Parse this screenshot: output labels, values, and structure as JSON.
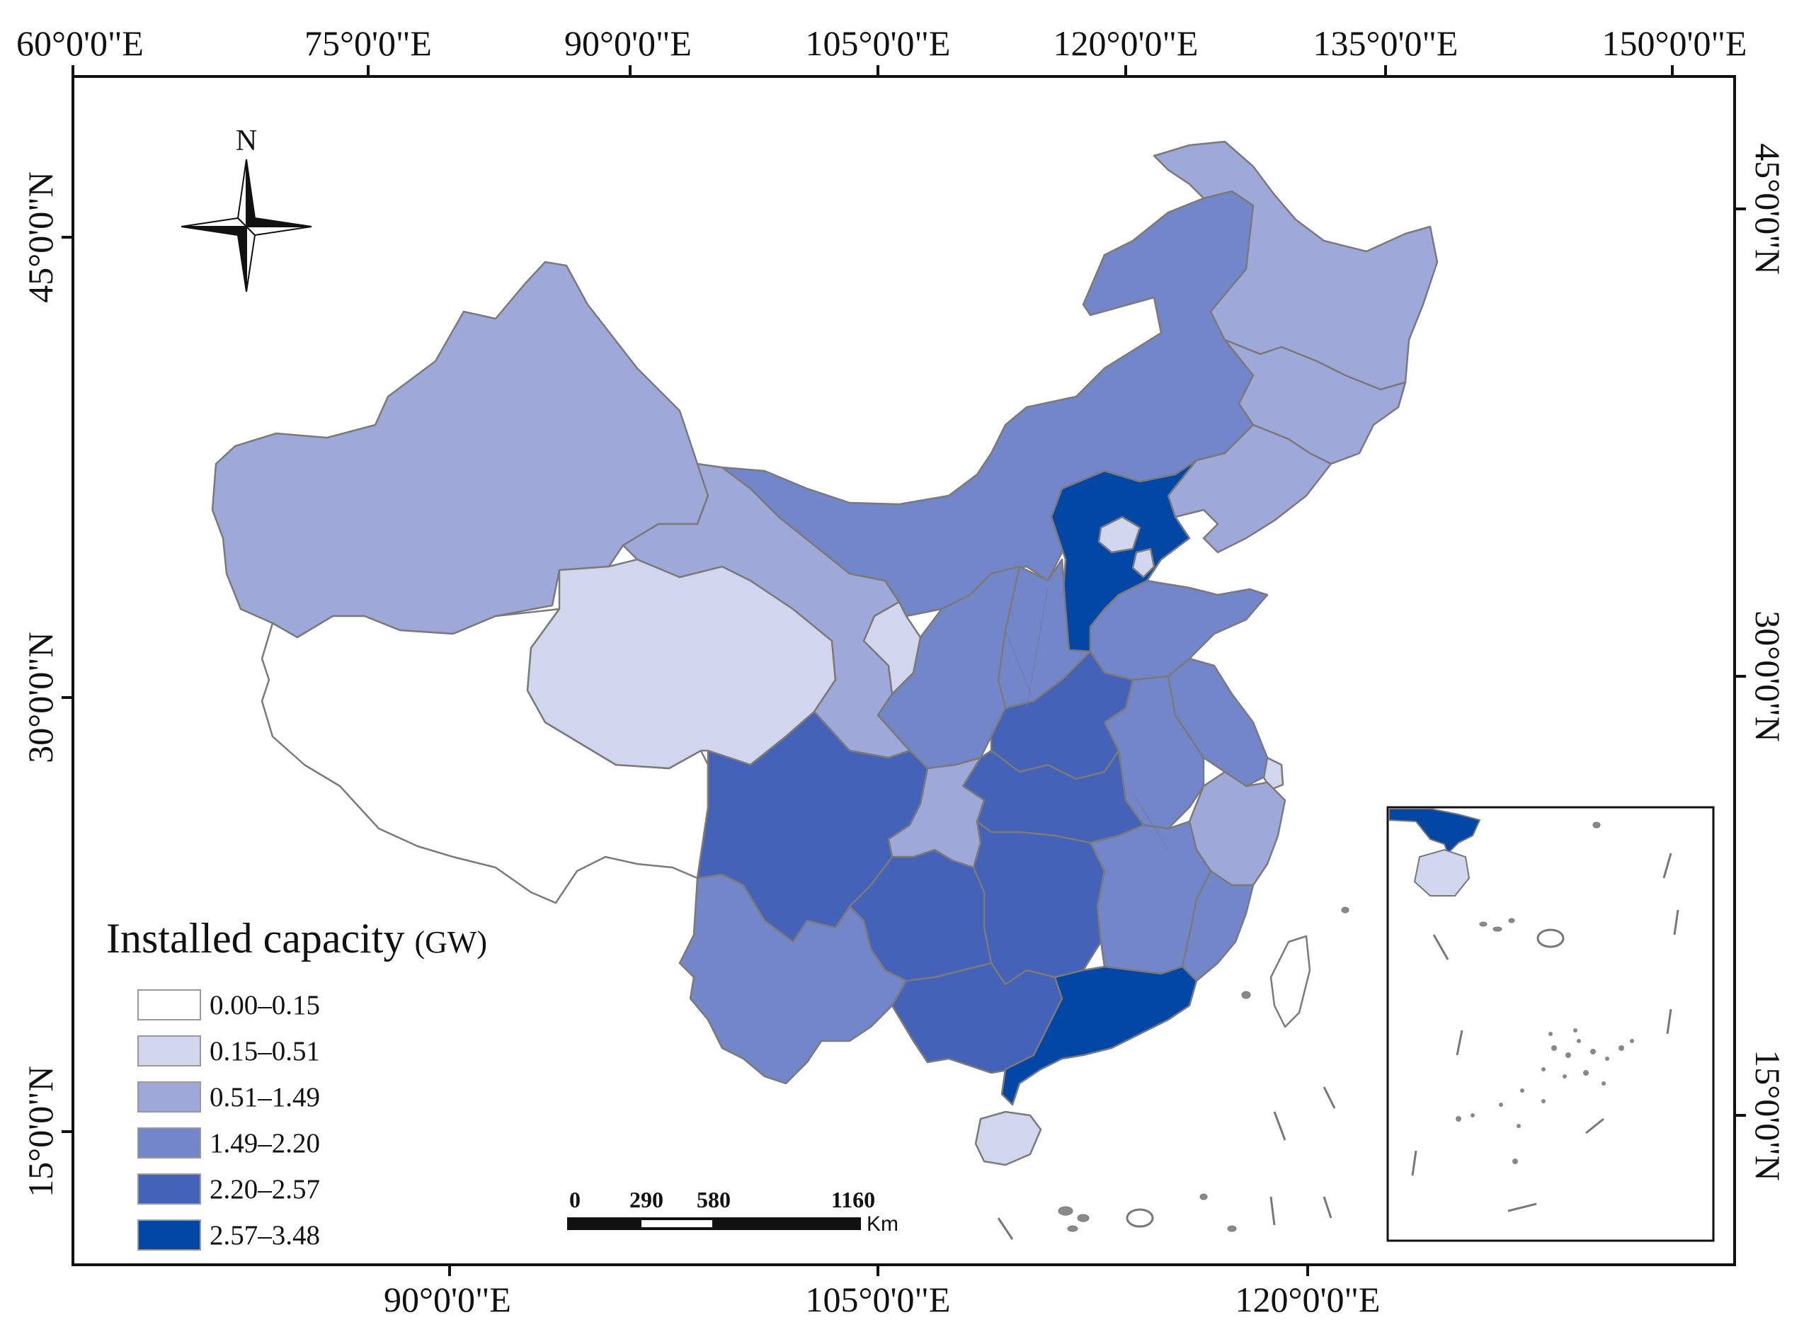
{
  "top_ticks": [
    "60°0'0\"E",
    "75°0'0\"E",
    "90°0'0\"E",
    "105°0'0\"E",
    "120°0'0\"E",
    "135°0'0\"E",
    "150°0'0\"E"
  ],
  "bottom_ticks": [
    "90°0'0\"E",
    "105°0'0\"E",
    "120°0'0\"E"
  ],
  "left_ticks": [
    "45°0'0\"N",
    "30°0'0\"N",
    "15°0'0\"N"
  ],
  "right_ticks": [
    "45°0'0\"N",
    "30°0'0\"N",
    "15°0'0\"N"
  ],
  "north_arrow": {
    "label": "N",
    "icon": "compass-rose-icon"
  },
  "legend": {
    "title": "Installed capacity",
    "unit": "(GW)",
    "classes": [
      {
        "label": "0.00–0.15",
        "color": "#ffffff"
      },
      {
        "label": "0.15–0.51",
        "color": "#d1d5ee"
      },
      {
        "label": "0.51–1.49",
        "color": "#9ea8d9"
      },
      {
        "label": "1.49–2.20",
        "color": "#7286c9"
      },
      {
        "label": "2.20–2.57",
        "color": "#4362b8"
      },
      {
        "label": "2.57–3.48",
        "color": "#0347a6"
      }
    ]
  },
  "scale_bar": {
    "ticks": [
      "0",
      "290",
      "580",
      "1160"
    ],
    "unit": "Km"
  },
  "regions": [
    {
      "name": "Xinjiang",
      "class": 2
    },
    {
      "name": "Tibet",
      "class": 0
    },
    {
      "name": "Qinghai",
      "class": 1
    },
    {
      "name": "Gansu",
      "class": 2
    },
    {
      "name": "Inner Mongolia",
      "class": 3
    },
    {
      "name": "Heilongjiang",
      "class": 2
    },
    {
      "name": "Jilin",
      "class": 2
    },
    {
      "name": "Liaoning",
      "class": 2
    },
    {
      "name": "Hebei",
      "class": 5
    },
    {
      "name": "Beijing",
      "class": 1
    },
    {
      "name": "Tianjin",
      "class": 1
    },
    {
      "name": "Shanxi",
      "class": 3
    },
    {
      "name": "Shaanxi",
      "class": 3
    },
    {
      "name": "Ningxia",
      "class": 1
    },
    {
      "name": "Shandong",
      "class": 3
    },
    {
      "name": "Henan",
      "class": 4
    },
    {
      "name": "Jiangsu",
      "class": 3
    },
    {
      "name": "Anhui",
      "class": 3
    },
    {
      "name": "Shanghai",
      "class": 1
    },
    {
      "name": "Zhejiang",
      "class": 2
    },
    {
      "name": "Hubei",
      "class": 4
    },
    {
      "name": "Chongqing",
      "class": 2
    },
    {
      "name": "Sichuan",
      "class": 4
    },
    {
      "name": "Hunan",
      "class": 4
    },
    {
      "name": "Jiangxi",
      "class": 3
    },
    {
      "name": "Fujian",
      "class": 3
    },
    {
      "name": "Guizhou",
      "class": 4
    },
    {
      "name": "Yunnan",
      "class": 3
    },
    {
      "name": "Guangxi",
      "class": 4
    },
    {
      "name": "Guangdong",
      "class": 5
    },
    {
      "name": "Hainan",
      "class": 1
    },
    {
      "name": "Taiwan",
      "class": 0
    }
  ]
}
